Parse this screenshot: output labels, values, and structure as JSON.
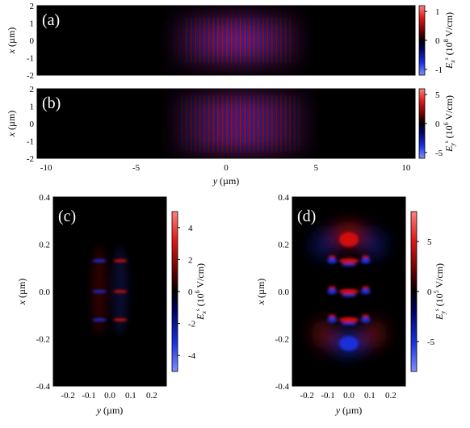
{
  "chart_data": [
    {
      "type": "heatmap",
      "panel_label": "(a)",
      "xlabel": "",
      "ylabel": "x (µm)",
      "ylabel_var": "x",
      "ylabel_unit": "(µm)",
      "xlim": [
        -10.5,
        10.5
      ],
      "ylim": [
        -2,
        2
      ],
      "xticks": [
        -10,
        -5,
        0,
        5,
        10
      ],
      "yticks": [
        2,
        1,
        0,
        -1,
        -2
      ],
      "colorbar": {
        "label_var": "E",
        "label_sub": "x",
        "label_sup": "s",
        "label_unit": "(10",
        "label_exp": "8",
        "label_tail": " V/cm)",
        "ticks": [
          1,
          0,
          -1
        ],
        "range": [
          -1.2,
          1.2
        ]
      },
      "pattern": {
        "kind": "single-lobe",
        "x_center": 0.6,
        "x_halfwidth": 4.3,
        "y_halfwidth": 1.3,
        "fringe_period": 0.25
      }
    },
    {
      "type": "heatmap",
      "panel_label": "(b)",
      "xlabel": "y (µm)",
      "xlabel_var": "y",
      "xlabel_unit": "(µm)",
      "ylabel": "x (µm)",
      "ylabel_var": "x",
      "ylabel_unit": "(µm)",
      "xlim": [
        -10.5,
        10.5
      ],
      "ylim": [
        -2,
        2
      ],
      "xticks": [
        -10,
        -5,
        0,
        5,
        10
      ],
      "xtick_labels": [
        "-10",
        "-5",
        "0",
        "5",
        "10"
      ],
      "yticks": [
        2,
        1,
        0,
        -1,
        -2
      ],
      "colorbar": {
        "label_var": "E",
        "label_sub": "y",
        "label_sup": "s",
        "label_unit": "(10",
        "label_exp": "6",
        "label_tail": " V/cm)",
        "ticks": [
          5,
          0,
          -5
        ],
        "range": [
          -6,
          6
        ]
      },
      "pattern": {
        "kind": "double-lobe",
        "x_center": 0.8,
        "x_halfwidth": 4.5,
        "y_offset": 0.85,
        "fringe_period": 0.25
      }
    },
    {
      "type": "heatmap",
      "panel_label": "(c)",
      "xlabel": "y (µm)",
      "xlabel_var": "y",
      "xlabel_unit": "(µm)",
      "ylabel": "x (µm)",
      "ylabel_var": "x",
      "ylabel_unit": "(µm)",
      "xlim": [
        -0.27,
        0.27
      ],
      "ylim": [
        -0.4,
        0.4
      ],
      "xticks": [
        -0.2,
        -0.1,
        0.0,
        0.1,
        0.2
      ],
      "xtick_labels": [
        "-0.2",
        "-0.1",
        "0.0",
        "0.1",
        "0.2"
      ],
      "yticks": [
        0.4,
        0.2,
        0.0,
        -0.2,
        -0.4
      ],
      "ytick_labels": [
        "0.4",
        "0.2",
        "0.0",
        "-0.2",
        "-0.4"
      ],
      "colorbar": {
        "label_var": "E",
        "label_sub": "x",
        "label_sup": "s",
        "label_unit": "(10",
        "label_exp": "6",
        "label_tail": " V/cm)",
        "ticks": [
          4,
          2,
          0,
          -2,
          -4
        ],
        "range": [
          -5,
          5
        ]
      },
      "features": [
        {
          "x": -0.05,
          "y": 0.13,
          "sign": -1
        },
        {
          "x": 0.05,
          "y": 0.13,
          "sign": 1
        },
        {
          "x": -0.05,
          "y": 0.0,
          "sign": -1
        },
        {
          "x": 0.05,
          "y": 0.0,
          "sign": 1
        },
        {
          "x": -0.05,
          "y": -0.12,
          "sign": -1
        },
        {
          "x": 0.05,
          "y": -0.12,
          "sign": 1
        }
      ]
    },
    {
      "type": "heatmap",
      "panel_label": "(d)",
      "xlabel": "y (µm)",
      "xlabel_var": "y",
      "xlabel_unit": "(µm)",
      "ylabel": "x (µm)",
      "ylabel_var": "x",
      "ylabel_unit": "(µm)",
      "xlim": [
        -0.27,
        0.27
      ],
      "ylim": [
        -0.4,
        0.4
      ],
      "xticks": [
        -0.2,
        -0.1,
        0.0,
        0.1,
        0.2
      ],
      "xtick_labels": [
        "-0.2",
        "-0.1",
        "0.0",
        "0.1",
        "0.2"
      ],
      "yticks": [
        0.4,
        0.2,
        0.0,
        -0.2,
        -0.4
      ],
      "ytick_labels": [
        "0.4",
        "0.2",
        "0.0",
        "-0.2",
        "-0.4"
      ],
      "colorbar": {
        "label_var": "E",
        "label_sub": "y",
        "label_sup": "s",
        "label_unit": "(10",
        "label_exp": "5",
        "label_tail": " V/cm)",
        "ticks": [
          5,
          0,
          -5
        ],
        "range": [
          -8,
          8
        ]
      },
      "features": [
        {
          "x": 0.0,
          "y": 0.13,
          "sign": 1
        },
        {
          "x": 0.0,
          "y": 0.0,
          "sign": 1
        },
        {
          "x": 0.0,
          "y": -0.12,
          "sign": 1
        },
        {
          "x": -0.08,
          "y": 0.13,
          "sign": -1
        },
        {
          "x": 0.08,
          "y": 0.13,
          "sign": -1
        },
        {
          "x": -0.08,
          "y": 0.0,
          "sign": -1
        },
        {
          "x": 0.08,
          "y": 0.0,
          "sign": -1
        },
        {
          "x": -0.08,
          "y": -0.12,
          "sign": -1
        },
        {
          "x": 0.08,
          "y": -0.12,
          "sign": -1
        },
        {
          "x": 0.0,
          "y": 0.22,
          "sign": 1
        },
        {
          "x": 0.0,
          "y": -0.22,
          "sign": -1
        }
      ]
    }
  ],
  "colors": {
    "positive": "#d01010",
    "negative": "#1a2fd8",
    "background": "#000000"
  }
}
